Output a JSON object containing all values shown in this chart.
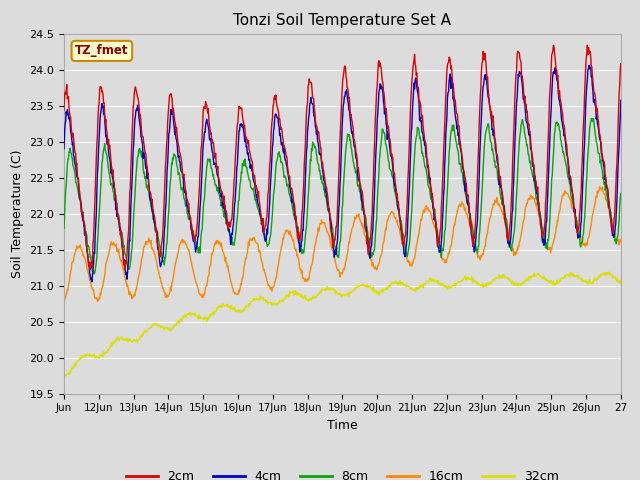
{
  "title": "Tonzi Soil Temperature Set A",
  "xlabel": "Time",
  "ylabel": "Soil Temperature (C)",
  "ylim": [
    19.5,
    24.5
  ],
  "xlim": [
    0,
    16
  ],
  "colors": {
    "2cm": "#dd0000",
    "4cm": "#0000cc",
    "8cm": "#00aa00",
    "16cm": "#ff8800",
    "32cm": "#dddd00"
  },
  "annotation_text": "TZ_fmet",
  "annotation_bg": "#ffffcc",
  "annotation_border": "#cc8800",
  "background_color": "#dcdcdc",
  "grid_color": "#ffffff",
  "n_points": 1000
}
